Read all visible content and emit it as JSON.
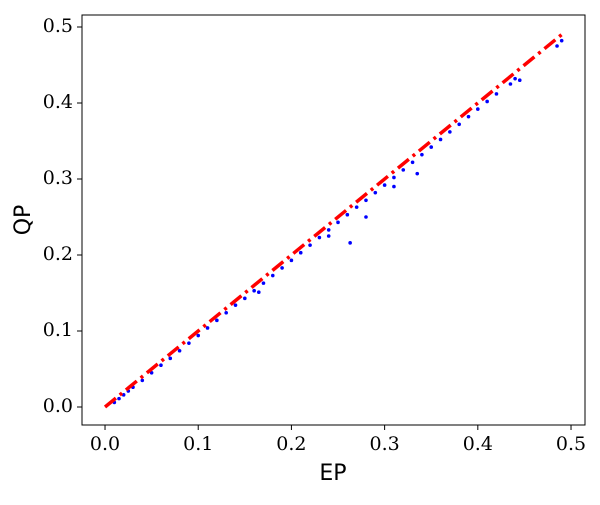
{
  "chart_data": {
    "type": "scatter",
    "x_label": "EP",
    "y_label": "QP",
    "xlim": [
      -0.0247,
      0.515
    ],
    "ylim": [
      -0.0237,
      0.5158
    ],
    "xticks": [
      {
        "value": 0,
        "label": "0.0"
      },
      0.1,
      0.2,
      0.3,
      0.4,
      0.5
    ],
    "yticks": [
      {
        "value": 0,
        "label": "0.0"
      },
      0.1,
      0.2,
      0.3,
      0.4,
      0.5
    ],
    "series": [
      {
        "type": "scatter",
        "color": "#0000ff",
        "x": [
          0.01,
          0.015,
          0.02,
          0.025,
          0.03,
          0.04,
          0.05,
          0.06,
          0.07,
          0.08,
          0.09,
          0.1,
          0.11,
          0.12,
          0.13,
          0.14,
          0.15,
          0.16,
          0.165,
          0.17,
          0.18,
          0.19,
          0.2,
          0.21,
          0.22,
          0.23,
          0.24,
          0.24,
          0.25,
          0.26,
          0.263,
          0.27,
          0.28,
          0.28,
          0.29,
          0.3,
          0.31,
          0.31,
          0.32,
          0.33,
          0.335,
          0.34,
          0.35,
          0.36,
          0.37,
          0.38,
          0.39,
          0.4,
          0.41,
          0.42,
          0.435,
          0.44,
          0.445,
          0.485,
          0.49
        ],
        "y": [
          0.006,
          0.011,
          0.016,
          0.021,
          0.026,
          0.035,
          0.045,
          0.055,
          0.064,
          0.074,
          0.084,
          0.094,
          0.104,
          0.114,
          0.124,
          0.134,
          0.143,
          0.153,
          0.151,
          0.163,
          0.173,
          0.183,
          0.193,
          0.203,
          0.213,
          0.223,
          0.233,
          0.225,
          0.243,
          0.253,
          0.216,
          0.263,
          0.272,
          0.25,
          0.282,
          0.292,
          0.302,
          0.29,
          0.312,
          0.322,
          0.307,
          0.332,
          0.342,
          0.352,
          0.362,
          0.372,
          0.382,
          0.392,
          0.402,
          0.412,
          0.425,
          0.432,
          0.43,
          0.475,
          0.482
        ]
      },
      {
        "type": "line",
        "color": "#ff0000",
        "x": [
          0,
          0.49
        ],
        "y": [
          0,
          0.49
        ]
      }
    ]
  }
}
